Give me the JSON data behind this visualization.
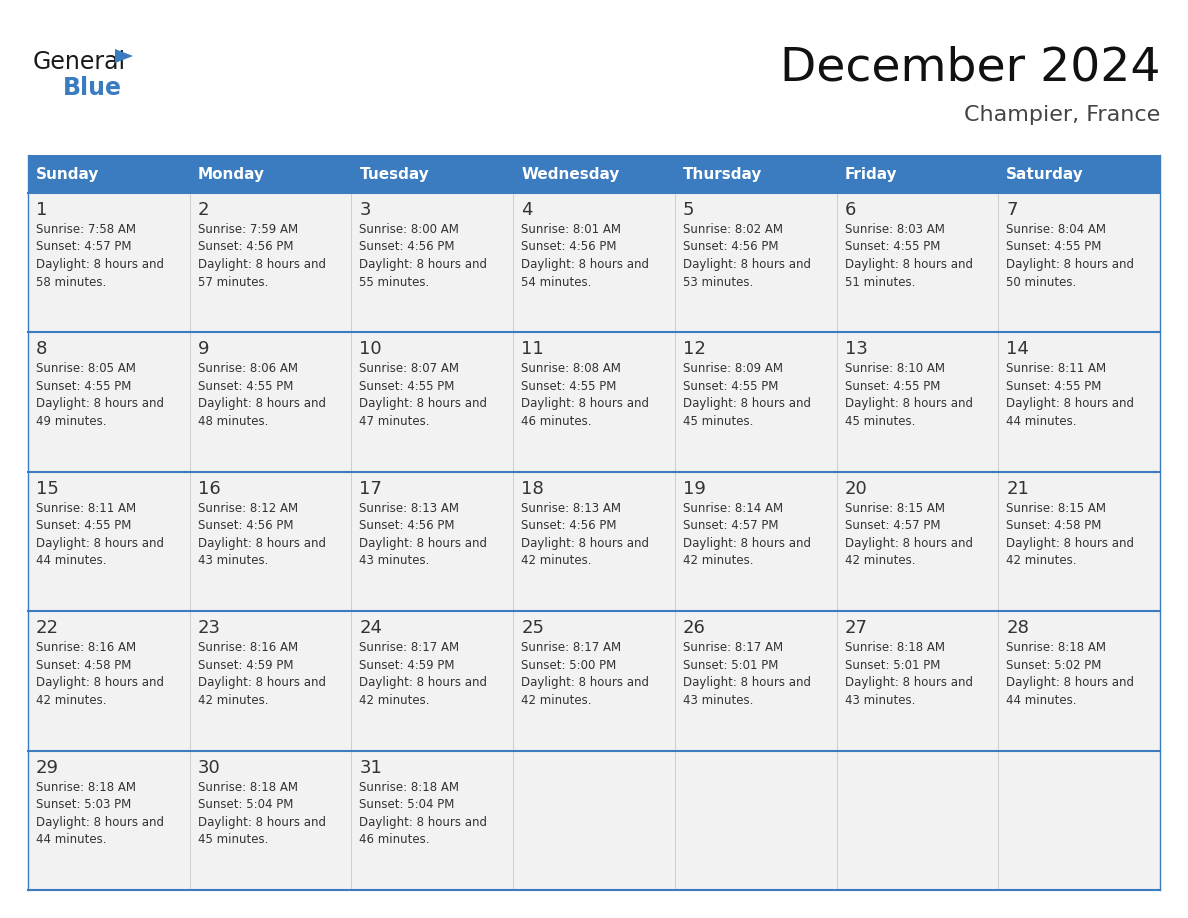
{
  "title": "December 2024",
  "subtitle": "Champier, France",
  "header_color": "#3B7BBF",
  "header_text_color": "#FFFFFF",
  "days_of_week": [
    "Sunday",
    "Monday",
    "Tuesday",
    "Wednesday",
    "Thursday",
    "Friday",
    "Saturday"
  ],
  "background_color": "#FFFFFF",
  "cell_bg_color": "#F2F2F2",
  "line_color": "#3B7BBF",
  "text_color": "#333333",
  "calendar_data": [
    [
      {
        "day": "1",
        "sunrise": "7:58 AM",
        "sunset": "4:57 PM",
        "daylight": "8 hours and 58 minutes."
      },
      {
        "day": "2",
        "sunrise": "7:59 AM",
        "sunset": "4:56 PM",
        "daylight": "8 hours and 57 minutes."
      },
      {
        "day": "3",
        "sunrise": "8:00 AM",
        "sunset": "4:56 PM",
        "daylight": "8 hours and 55 minutes."
      },
      {
        "day": "4",
        "sunrise": "8:01 AM",
        "sunset": "4:56 PM",
        "daylight": "8 hours and 54 minutes."
      },
      {
        "day": "5",
        "sunrise": "8:02 AM",
        "sunset": "4:56 PM",
        "daylight": "8 hours and 53 minutes."
      },
      {
        "day": "6",
        "sunrise": "8:03 AM",
        "sunset": "4:55 PM",
        "daylight": "8 hours and 51 minutes."
      },
      {
        "day": "7",
        "sunrise": "8:04 AM",
        "sunset": "4:55 PM",
        "daylight": "8 hours and 50 minutes."
      }
    ],
    [
      {
        "day": "8",
        "sunrise": "8:05 AM",
        "sunset": "4:55 PM",
        "daylight": "8 hours and 49 minutes."
      },
      {
        "day": "9",
        "sunrise": "8:06 AM",
        "sunset": "4:55 PM",
        "daylight": "8 hours and 48 minutes."
      },
      {
        "day": "10",
        "sunrise": "8:07 AM",
        "sunset": "4:55 PM",
        "daylight": "8 hours and 47 minutes."
      },
      {
        "day": "11",
        "sunrise": "8:08 AM",
        "sunset": "4:55 PM",
        "daylight": "8 hours and 46 minutes."
      },
      {
        "day": "12",
        "sunrise": "8:09 AM",
        "sunset": "4:55 PM",
        "daylight": "8 hours and 45 minutes."
      },
      {
        "day": "13",
        "sunrise": "8:10 AM",
        "sunset": "4:55 PM",
        "daylight": "8 hours and 45 minutes."
      },
      {
        "day": "14",
        "sunrise": "8:11 AM",
        "sunset": "4:55 PM",
        "daylight": "8 hours and 44 minutes."
      }
    ],
    [
      {
        "day": "15",
        "sunrise": "8:11 AM",
        "sunset": "4:55 PM",
        "daylight": "8 hours and 44 minutes."
      },
      {
        "day": "16",
        "sunrise": "8:12 AM",
        "sunset": "4:56 PM",
        "daylight": "8 hours and 43 minutes."
      },
      {
        "day": "17",
        "sunrise": "8:13 AM",
        "sunset": "4:56 PM",
        "daylight": "8 hours and 43 minutes."
      },
      {
        "day": "18",
        "sunrise": "8:13 AM",
        "sunset": "4:56 PM",
        "daylight": "8 hours and 42 minutes."
      },
      {
        "day": "19",
        "sunrise": "8:14 AM",
        "sunset": "4:57 PM",
        "daylight": "8 hours and 42 minutes."
      },
      {
        "day": "20",
        "sunrise": "8:15 AM",
        "sunset": "4:57 PM",
        "daylight": "8 hours and 42 minutes."
      },
      {
        "day": "21",
        "sunrise": "8:15 AM",
        "sunset": "4:58 PM",
        "daylight": "8 hours and 42 minutes."
      }
    ],
    [
      {
        "day": "22",
        "sunrise": "8:16 AM",
        "sunset": "4:58 PM",
        "daylight": "8 hours and 42 minutes."
      },
      {
        "day": "23",
        "sunrise": "8:16 AM",
        "sunset": "4:59 PM",
        "daylight": "8 hours and 42 minutes."
      },
      {
        "day": "24",
        "sunrise": "8:17 AM",
        "sunset": "4:59 PM",
        "daylight": "8 hours and 42 minutes."
      },
      {
        "day": "25",
        "sunrise": "8:17 AM",
        "sunset": "5:00 PM",
        "daylight": "8 hours and 42 minutes."
      },
      {
        "day": "26",
        "sunrise": "8:17 AM",
        "sunset": "5:01 PM",
        "daylight": "8 hours and 43 minutes."
      },
      {
        "day": "27",
        "sunrise": "8:18 AM",
        "sunset": "5:01 PM",
        "daylight": "8 hours and 43 minutes."
      },
      {
        "day": "28",
        "sunrise": "8:18 AM",
        "sunset": "5:02 PM",
        "daylight": "8 hours and 44 minutes."
      }
    ],
    [
      {
        "day": "29",
        "sunrise": "8:18 AM",
        "sunset": "5:03 PM",
        "daylight": "8 hours and 44 minutes."
      },
      {
        "day": "30",
        "sunrise": "8:18 AM",
        "sunset": "5:04 PM",
        "daylight": "8 hours and 45 minutes."
      },
      {
        "day": "31",
        "sunrise": "8:18 AM",
        "sunset": "5:04 PM",
        "daylight": "8 hours and 46 minutes."
      },
      null,
      null,
      null,
      null
    ]
  ],
  "logo_text_general": "General",
  "logo_text_blue": "Blue",
  "logo_color_general": "#1a1a1a",
  "logo_color_blue": "#3B7BBF",
  "fig_width": 11.88,
  "fig_height": 9.18,
  "dpi": 100
}
